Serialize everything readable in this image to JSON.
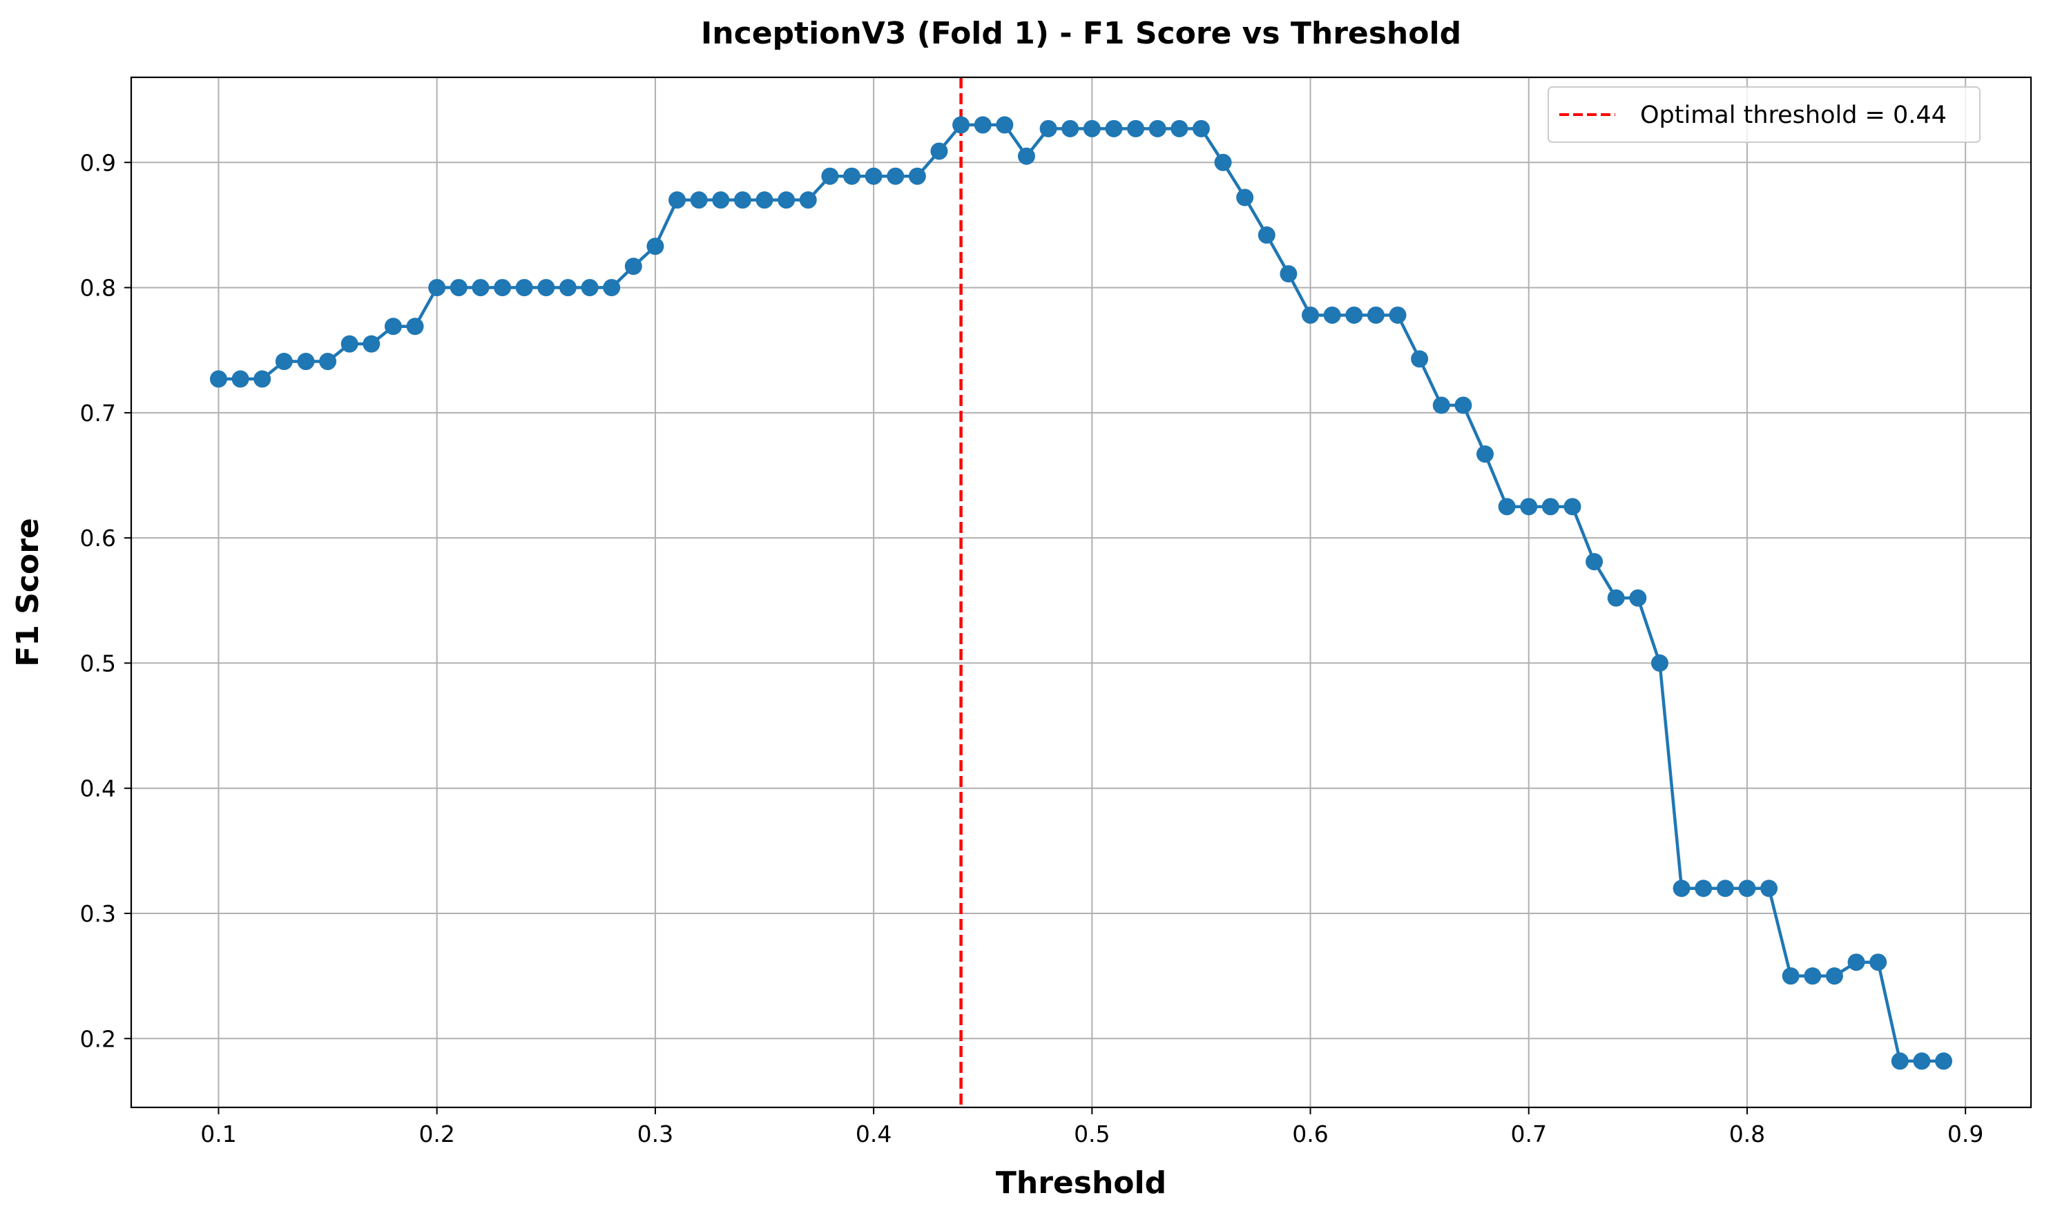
{
  "chart_data": {
    "type": "line",
    "title": "InceptionV3 (Fold 1) - F1 Score vs Threshold",
    "xlabel": "Threshold",
    "ylabel": "F1 Score",
    "xlim": [
      0.06,
      0.93
    ],
    "ylim": [
      0.145,
      0.968
    ],
    "xticks": [
      0.1,
      0.2,
      0.3,
      0.4,
      0.5,
      0.6,
      0.7,
      0.8,
      0.9
    ],
    "xtick_labels": [
      "0.1",
      "0.2",
      "0.3",
      "0.4",
      "0.5",
      "0.6",
      "0.7",
      "0.8",
      "0.9"
    ],
    "yticks": [
      0.2,
      0.3,
      0.4,
      0.5,
      0.6,
      0.7,
      0.8,
      0.9
    ],
    "ytick_labels": [
      "0.2",
      "0.3",
      "0.4",
      "0.5",
      "0.6",
      "0.7",
      "0.8",
      "0.9"
    ],
    "grid": true,
    "legend_position": "top-right",
    "series": [
      {
        "color": "#1f77b4",
        "marker": "circle",
        "x": [
          0.1,
          0.11,
          0.12,
          0.13,
          0.14,
          0.15,
          0.16,
          0.17,
          0.18,
          0.19,
          0.2,
          0.21,
          0.22,
          0.23,
          0.24,
          0.25,
          0.26,
          0.27,
          0.28,
          0.29,
          0.3,
          0.31,
          0.32,
          0.33,
          0.34,
          0.35,
          0.36,
          0.37,
          0.38,
          0.39,
          0.4,
          0.41,
          0.42,
          0.43,
          0.44,
          0.45,
          0.46,
          0.47,
          0.48,
          0.49,
          0.5,
          0.51,
          0.52,
          0.53,
          0.54,
          0.55,
          0.56,
          0.57,
          0.58,
          0.59,
          0.6,
          0.61,
          0.62,
          0.63,
          0.64,
          0.65,
          0.66,
          0.67,
          0.68,
          0.69,
          0.7,
          0.71,
          0.72,
          0.73,
          0.74,
          0.75,
          0.76,
          0.77,
          0.78,
          0.79,
          0.8,
          0.81,
          0.82,
          0.83,
          0.84,
          0.85,
          0.86,
          0.87,
          0.88,
          0.89
        ],
        "y": [
          0.727,
          0.727,
          0.727,
          0.741,
          0.741,
          0.741,
          0.755,
          0.755,
          0.769,
          0.769,
          0.8,
          0.8,
          0.8,
          0.8,
          0.8,
          0.8,
          0.8,
          0.8,
          0.8,
          0.817,
          0.833,
          0.87,
          0.87,
          0.87,
          0.87,
          0.87,
          0.87,
          0.87,
          0.889,
          0.889,
          0.889,
          0.889,
          0.889,
          0.909,
          0.93,
          0.93,
          0.93,
          0.905,
          0.927,
          0.927,
          0.927,
          0.927,
          0.927,
          0.927,
          0.927,
          0.927,
          0.9,
          0.872,
          0.842,
          0.811,
          0.778,
          0.778,
          0.778,
          0.778,
          0.778,
          0.743,
          0.706,
          0.706,
          0.667,
          0.625,
          0.625,
          0.625,
          0.625,
          0.581,
          0.552,
          0.552,
          0.5,
          0.32,
          0.32,
          0.32,
          0.32,
          0.32,
          0.25,
          0.25,
          0.25,
          0.261,
          0.261,
          0.182,
          0.182,
          0.182
        ]
      }
    ],
    "reference_lines": [
      {
        "orientation": "vertical",
        "x": 0.44,
        "color": "#ff0000",
        "style": "dashed",
        "label": "Optimal threshold = 0.44"
      }
    ]
  }
}
